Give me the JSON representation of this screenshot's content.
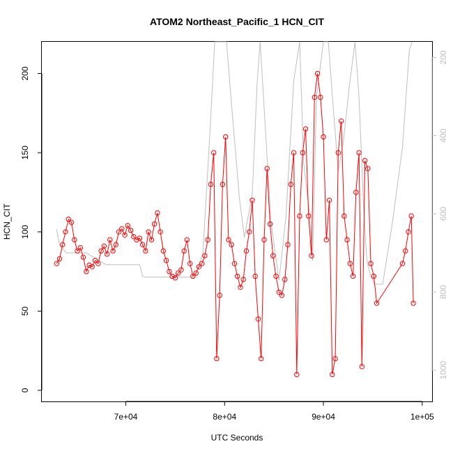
{
  "chart_data": {
    "type": "scatter",
    "title": "ATOM2 Northeast_Pacific_1 HCN_CIT",
    "xlabel": "UTC Seconds",
    "ylabel": "HCN_CIT",
    "xlim": [
      61500,
      101000
    ],
    "ylim": [
      -7,
      220
    ],
    "y2lim": [
      1080,
      160
    ],
    "y2_reversed": true,
    "x_ticks": [
      70000,
      80000,
      90000,
      100000
    ],
    "x_tick_labels": [
      "7e+04",
      "8e+04",
      "9e+04",
      "1e+05"
    ],
    "y_ticks": [
      0,
      50,
      100,
      150,
      200
    ],
    "y_tick_labels": [
      "0",
      "50",
      "100",
      "150",
      "200"
    ],
    "y2_ticks": [
      200,
      400,
      600,
      800,
      1000
    ],
    "y2_tick_labels": [
      "200",
      "400",
      "600",
      "800",
      "1000"
    ],
    "grid": false,
    "colors": {
      "series": "#ff0000",
      "pressure": "#bebebe",
      "axis": "#000000"
    },
    "series": [
      {
        "name": "HCN_CIT",
        "color": "#ff0000",
        "marker": "open-circle",
        "connected": true,
        "x": [
          63000,
          63300,
          63600,
          63900,
          64200,
          64500,
          64800,
          65100,
          65400,
          65700,
          66000,
          66300,
          66600,
          66900,
          67200,
          67500,
          67800,
          68100,
          68400,
          68700,
          69000,
          69300,
          69600,
          69900,
          70200,
          70500,
          70800,
          71100,
          71400,
          71700,
          72000,
          72300,
          72600,
          72900,
          73200,
          73500,
          73800,
          74100,
          74400,
          74700,
          75000,
          75300,
          75600,
          75900,
          76200,
          76500,
          76800,
          77100,
          77400,
          77700,
          78000,
          78300,
          78600,
          78900,
          79200,
          79500,
          79800,
          80100,
          80400,
          80700,
          81000,
          81300,
          81600,
          81900,
          82200,
          82500,
          82800,
          83100,
          83400,
          83700,
          84000,
          84300,
          84600,
          84900,
          85200,
          85500,
          85800,
          86100,
          86400,
          86700,
          87000,
          87300,
          87600,
          87900,
          88200,
          88500,
          88800,
          89100,
          89400,
          89700,
          90000,
          90300,
          90600,
          90900,
          91200,
          91500,
          91800,
          92100,
          92400,
          92700,
          93000,
          93300,
          93600,
          93900,
          94200,
          94500,
          94800,
          95100,
          95400,
          98000,
          98300,
          98600,
          98900,
          99100
        ],
        "y": [
          80,
          83,
          92,
          100,
          108,
          106,
          95,
          88,
          90,
          84,
          75,
          79,
          78,
          82,
          80,
          88,
          91,
          86,
          95,
          88,
          92,
          100,
          102,
          98,
          104,
          101,
          97,
          95,
          96,
          92,
          88,
          100,
          95,
          105,
          112,
          100,
          88,
          82,
          75,
          72,
          71,
          74,
          76,
          88,
          95,
          80,
          72,
          74,
          78,
          80,
          85,
          95,
          130,
          150,
          20,
          60,
          130,
          160,
          95,
          92,
          80,
          72,
          65,
          70,
          88,
          100,
          120,
          72,
          45,
          20,
          95,
          140,
          105,
          85,
          72,
          62,
          60,
          70,
          92,
          130,
          150,
          10,
          110,
          150,
          165,
          110,
          85,
          185,
          200,
          185,
          160,
          95,
          120,
          10,
          20,
          150,
          170,
          110,
          95,
          80,
          72,
          125,
          150,
          15,
          145,
          140,
          80,
          72,
          55,
          80,
          88,
          100,
          110,
          55
        ]
      }
    ],
    "reference_line": {
      "name": "pressure",
      "color": "#bebebe",
      "axis": "right",
      "x": [
        63000,
        63300,
        64000,
        66000,
        68000,
        70000,
        71400,
        71700,
        72000,
        74000,
        76000,
        77000,
        77800,
        78500,
        79000,
        79800,
        80200,
        80700,
        81500,
        82000,
        82800,
        83300,
        83600,
        84000,
        84700,
        85500,
        86200,
        87000,
        87600,
        88000,
        88600,
        88900,
        89300,
        90000,
        90500,
        91000,
        91500,
        92000,
        92600,
        93200,
        93600,
        94100,
        94400,
        94800,
        95200,
        96000,
        97000,
        98000,
        98700,
        99000
      ],
      "y": [
        640,
        680,
        700,
        700,
        730,
        730,
        730,
        760,
        762,
        762,
        762,
        762,
        700,
        400,
        120,
        100,
        130,
        320,
        560,
        660,
        550,
        260,
        120,
        330,
        620,
        770,
        610,
        260,
        120,
        470,
        600,
        720,
        300,
        160,
        140,
        330,
        490,
        420,
        280,
        140,
        300,
        600,
        720,
        760,
        780,
        780,
        620,
        430,
        180,
        150
      ]
    }
  }
}
